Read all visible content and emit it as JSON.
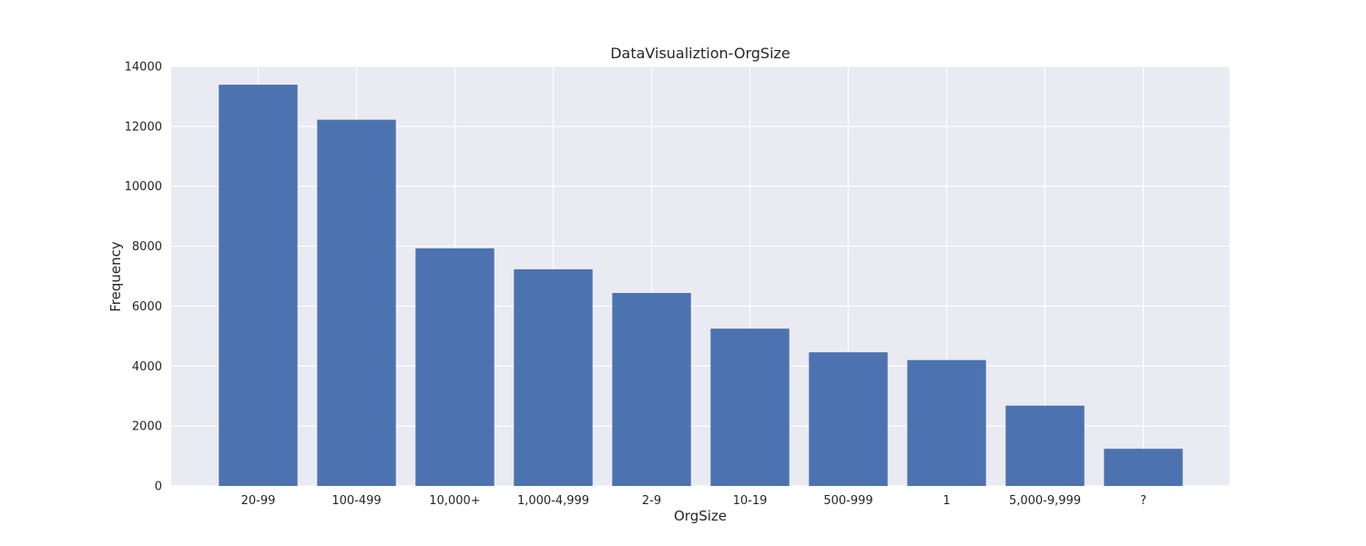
{
  "chart_data": {
    "type": "bar",
    "title": "DataVisualiztion-OrgSize",
    "xlabel": "OrgSize",
    "ylabel": "Frequency",
    "categories": [
      "20-99",
      "100-499",
      "10,000+",
      "1,000-4,999",
      "2-9",
      "10-19",
      "500-999",
      "1",
      "5,000-9,999",
      "?"
    ],
    "values": [
      13390,
      12220,
      7930,
      7230,
      6440,
      5250,
      4460,
      4200,
      2680,
      1240
    ],
    "ylim": [
      0,
      14000
    ],
    "yticks": [
      0,
      2000,
      4000,
      6000,
      8000,
      10000,
      12000,
      14000
    ],
    "grid": true,
    "legend": "none",
    "colors": {
      "bar": "#4c72b0",
      "plot_background": "#eaeaf2",
      "grid": "#ffffff",
      "text": "#262626"
    }
  }
}
